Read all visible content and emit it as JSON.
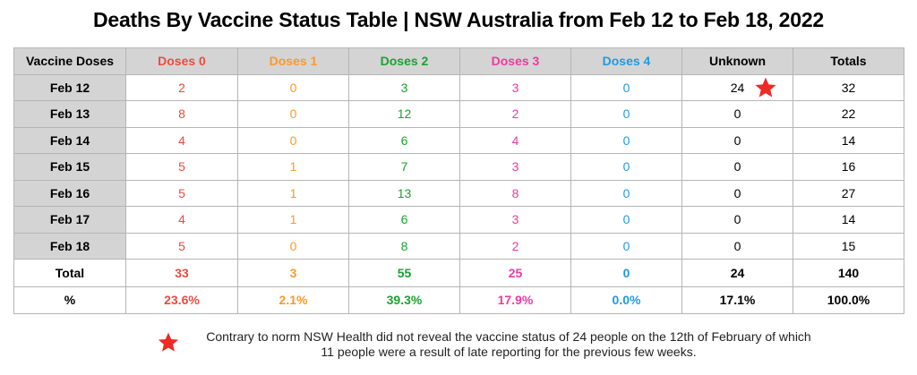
{
  "title": "Deaths By Vaccine Status Table | NSW Australia from Feb 12 to Feb 18, 2022",
  "columns": [
    "Vaccine Doses",
    "Doses 0",
    "Doses 1",
    "Doses 2",
    "Doses 3",
    "Doses 4",
    "Unknown",
    "Totals"
  ],
  "rows": [
    {
      "label": "Feb 12",
      "values": [
        "2",
        "0",
        "3",
        "3",
        "0",
        "24",
        "32"
      ]
    },
    {
      "label": "Feb 13",
      "values": [
        "8",
        "0",
        "12",
        "2",
        "0",
        "0",
        "22"
      ]
    },
    {
      "label": "Feb 14",
      "values": [
        "4",
        "0",
        "6",
        "4",
        "0",
        "0",
        "14"
      ]
    },
    {
      "label": "Feb 15",
      "values": [
        "5",
        "1",
        "7",
        "3",
        "0",
        "0",
        "16"
      ]
    },
    {
      "label": "Feb 16",
      "values": [
        "5",
        "1",
        "13",
        "8",
        "0",
        "0",
        "27"
      ]
    },
    {
      "label": "Feb 17",
      "values": [
        "4",
        "1",
        "6",
        "3",
        "0",
        "0",
        "14"
      ]
    },
    {
      "label": "Feb 18",
      "values": [
        "5",
        "0",
        "8",
        "2",
        "0",
        "0",
        "15"
      ]
    }
  ],
  "total_row": {
    "label": "Total",
    "values": [
      "33",
      "3",
      "55",
      "25",
      "0",
      "24",
      "140"
    ]
  },
  "percent_row": {
    "label": "%",
    "values": [
      "23.6%",
      "2.1%",
      "39.3%",
      "17.9%",
      "0.0%",
      "17.1%",
      "100.0%"
    ]
  },
  "colors": {
    "doses_0": "#f0493e",
    "doses_1": "#f99a2b",
    "doses_2": "#1aa32f",
    "doses_3": "#ef3aa0",
    "doses_4": "#1e9be0",
    "star": "#ee2a24",
    "header_bg": "#d4d4d4"
  },
  "footnote": {
    "icon": "star-icon",
    "text": "Contrary to norm NSW Health did not reveal the vaccine status of 24 people on the 12th of February of which 11 people were a result of late reporting for the previous few weeks."
  }
}
